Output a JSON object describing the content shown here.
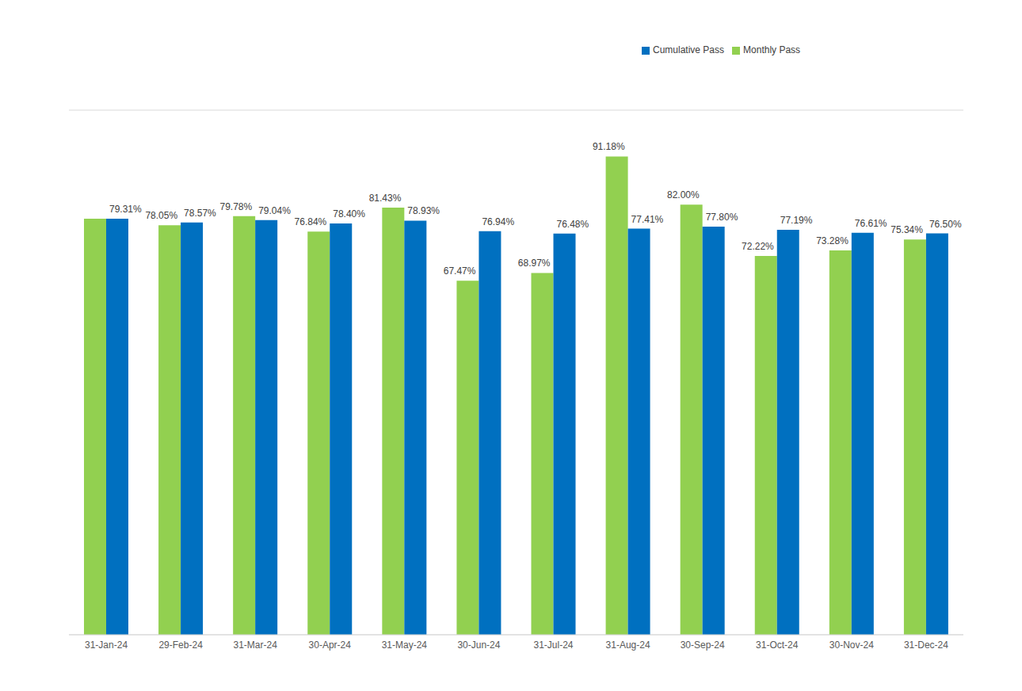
{
  "chart_data": {
    "type": "bar",
    "categories": [
      "31-Jan-24",
      "29-Feb-24",
      "31-Mar-24",
      "30-Apr-24",
      "31-May-24",
      "30-Jun-24",
      "31-Jul-24",
      "31-Aug-24",
      "30-Sep-24",
      "31-Oct-24",
      "30-Nov-24",
      "31-Dec-24"
    ],
    "series": [
      {
        "name": "Monthly Pass",
        "color": "#92D050",
        "values": [
          79.31,
          78.05,
          79.78,
          76.84,
          81.43,
          67.47,
          68.97,
          91.18,
          82.0,
          72.22,
          73.28,
          75.34
        ],
        "value_labels": [
          null,
          "78.05%",
          "79.78%",
          "76.84%",
          "81.43%",
          "67.47%",
          "68.97%",
          "91.18%",
          "82.00%",
          "72.22%",
          "73.28%",
          "75.34%"
        ]
      },
      {
        "name": "Cumulative Pass",
        "color": "#0070C0",
        "values": [
          79.31,
          78.57,
          79.04,
          78.4,
          78.93,
          76.94,
          76.48,
          77.41,
          77.8,
          77.19,
          76.61,
          76.5
        ],
        "value_labels": [
          "79.31%",
          "78.57%",
          "79.04%",
          "78.40%",
          "78.93%",
          "76.94%",
          "76.48%",
          "77.41%",
          "77.80%",
          "77.19%",
          "76.61%",
          "76.50%"
        ]
      }
    ],
    "ylim": [
      0,
      100
    ],
    "yticks": [
      0,
      20,
      40,
      60,
      80,
      100
    ],
    "grid": true,
    "legend": "top-right",
    "data_labels": true,
    "tick_labels": "x"
  }
}
